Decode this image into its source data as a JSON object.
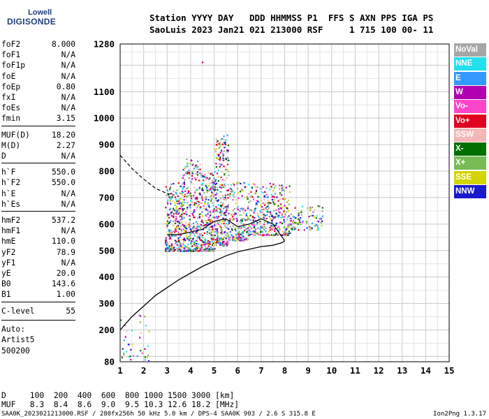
{
  "logo": {
    "line1": "Lowell",
    "line2": "DIGISONDE"
  },
  "header": {
    "row1": "Station YYYY DAY   DDD HHMMSS P1  FFS S AXN PPS IGA PS",
    "row2": "SaoLuis 2023 Jan21 021 213000 RSF     1 715 100 00- 11"
  },
  "params": {
    "group1": [
      {
        "label": "foF2",
        "value": "8.000"
      },
      {
        "label": "foF1",
        "value": "N/A"
      },
      {
        "label": "foF1p",
        "value": "N/A"
      },
      {
        "label": "foE",
        "value": "N/A"
      },
      {
        "label": "foEp",
        "value": "0.80"
      },
      {
        "label": "fxI",
        "value": "N/A"
      },
      {
        "label": "foEs",
        "value": "N/A"
      },
      {
        "label": "fmin",
        "value": "3.15"
      }
    ],
    "group2": [
      {
        "label": "MUF(D)",
        "value": "18.20"
      },
      {
        "label": "M(D)",
        "value": "2.27"
      },
      {
        "label": "D",
        "value": "N/A"
      }
    ],
    "group3": [
      {
        "label": "h`F",
        "value": "550.0"
      },
      {
        "label": "h`F2",
        "value": "550.0"
      },
      {
        "label": "h`E",
        "value": "N/A"
      },
      {
        "label": "h`Es",
        "value": "N/A"
      }
    ],
    "group4": [
      {
        "label": "hmF2",
        "value": "537.2"
      },
      {
        "label": "hmF1",
        "value": "N/A"
      },
      {
        "label": "hmE",
        "value": "110.0"
      },
      {
        "label": "yF2",
        "value": "78.9"
      },
      {
        "label": "yF1",
        "value": "N/A"
      },
      {
        "label": "yE",
        "value": "20.0"
      },
      {
        "label": "B0",
        "value": "143.6"
      },
      {
        "label": "B1",
        "value": "1.00"
      }
    ],
    "group5": [
      {
        "label": "C-level",
        "value": "55"
      }
    ]
  },
  "auto": [
    "Auto:",
    "Artist5",
    "500200"
  ],
  "muf_table": {
    "row1": "D     100  200  400  600  800 1000 1500 3000 [km]",
    "row2": "MUF   8.3  8.4  8.6  9.0  9.5 10.3 12.6 18.2 [MHz]"
  },
  "footer": {
    "left": "SAA0K_2023021213000.RSF / 280fx256h 50 kHz 5.0 km / DPS-4 SAA0K 903 / 2.6 S 315.8 E",
    "right": "Ion2Png 1.3.17"
  },
  "legend": [
    {
      "label": "NoVal",
      "color": "#a6a6a6"
    },
    {
      "label": "NNE",
      "color": "#22e0f0"
    },
    {
      "label": "E",
      "color": "#3399ff"
    },
    {
      "label": "W",
      "color": "#b000b0"
    },
    {
      "label": "Vo-",
      "color": "#ff44cc"
    },
    {
      "label": "Vo+",
      "color": "#e00020"
    },
    {
      "label": "SSW",
      "color": "#f4b6b6"
    },
    {
      "label": "X-",
      "color": "#007000"
    },
    {
      "label": "X+",
      "color": "#77bb55"
    },
    {
      "label": "SSE",
      "color": "#d4d400"
    },
    {
      "label": "NNW",
      "color": "#1a1acc"
    }
  ],
  "chart_data": {
    "type": "scatter",
    "xlabel": "",
    "ylabel": "",
    "xlim": [
      1,
      15
    ],
    "ylim": [
      80,
      1280
    ],
    "x_ticks": [
      "1",
      "2",
      "3",
      "4",
      "5",
      "6",
      "7",
      "8",
      "9",
      "10",
      "11",
      "12",
      "13",
      "14",
      "15"
    ],
    "y_ticks": [
      "80",
      "200",
      "300",
      "400",
      "500",
      "600",
      "700",
      "800",
      "900",
      "1000",
      "1100",
      "1280"
    ],
    "grid": true,
    "series": [
      {
        "values": [
          [
            1.0,
            200
          ],
          [
            1.5,
            250
          ],
          [
            2.0,
            290
          ],
          [
            2.5,
            330
          ],
          [
            3.0,
            360
          ],
          [
            3.5,
            390
          ],
          [
            4.0,
            415
          ],
          [
            4.5,
            440
          ],
          [
            5.0,
            460
          ],
          [
            5.5,
            480
          ],
          [
            6.0,
            495
          ],
          [
            6.5,
            505
          ],
          [
            7.0,
            515
          ],
          [
            7.5,
            520
          ],
          [
            7.9,
            530
          ],
          [
            8.0,
            537
          ]
        ]
      },
      {
        "values": [
          [
            8.0,
            537
          ],
          [
            7.5,
            600
          ],
          [
            7.0,
            620
          ],
          [
            6.5,
            600
          ],
          [
            6.0,
            590
          ],
          [
            5.5,
            620
          ],
          [
            5.0,
            610
          ],
          [
            4.5,
            580
          ],
          [
            4.0,
            570
          ],
          [
            3.5,
            560
          ],
          [
            3.0,
            560
          ]
        ]
      },
      {
        "values": [
          [
            1.0,
            860
          ],
          [
            1.5,
            810
          ],
          [
            2.0,
            770
          ],
          [
            2.5,
            735
          ],
          [
            3.0,
            715
          ],
          [
            3.3,
            710
          ]
        ]
      }
    ],
    "clusters": [
      {
        "x": [
          2.9,
          3.6
        ],
        "y": [
          500,
          760
        ],
        "n": 260
      },
      {
        "x": [
          3.6,
          4.4
        ],
        "y": [
          500,
          850
        ],
        "n": 320
      },
      {
        "x": [
          4.4,
          5.0
        ],
        "y": [
          500,
          800
        ],
        "n": 260
      },
      {
        "x": [
          5.0,
          5.6
        ],
        "y": [
          520,
          940
        ],
        "n": 300
      },
      {
        "x": [
          5.6,
          6.4
        ],
        "y": [
          540,
          760
        ],
        "n": 180
      },
      {
        "x": [
          6.4,
          7.4
        ],
        "y": [
          560,
          760
        ],
        "n": 200
      },
      {
        "x": [
          7.4,
          8.2
        ],
        "y": [
          560,
          760
        ],
        "n": 160
      },
      {
        "x": [
          8.2,
          9.6
        ],
        "y": [
          580,
          680
        ],
        "n": 90
      },
      {
        "x": [
          1.0,
          2.2
        ],
        "y": [
          80,
          260
        ],
        "n": 40
      },
      {
        "x": [
          4.4,
          4.6
        ],
        "y": [
          1210,
          1220
        ],
        "n": 1
      }
    ]
  }
}
